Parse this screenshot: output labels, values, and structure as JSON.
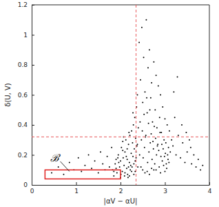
{
  "chart_data": {
    "type": "scatter",
    "x_label": "|αV − αU|",
    "y_label": "δ(U, V)",
    "color": "#000000",
    "xlim": [
      0,
      4
    ],
    "xticks": [
      0,
      1,
      2,
      3,
      4
    ],
    "ylim": [
      0,
      1.2
    ],
    "yticks": [
      0,
      0.2,
      0.4,
      0.6,
      0.8,
      1,
      1.2
    ],
    "grid": false,
    "vlines": [
      {
        "value": 2.35,
        "color": "#e8585a",
        "line_style": "dashed"
      }
    ],
    "hlines": [
      {
        "value": 0.32,
        "color": "#e8585a",
        "line_style": "dashed"
      }
    ],
    "box": {
      "x": [
        0.3,
        2.0
      ],
      "y": [
        0.04,
        0.1
      ],
      "color": "#e0201f"
    },
    "annotations": [
      {
        "text": "ℬ",
        "x": 0.52,
        "y": 0.175,
        "arrow_to": [
          0.85,
          0.09
        ]
      }
    ],
    "x": [
      0.45,
      0.6,
      0.72,
      0.85,
      0.95,
      1.05,
      1.12,
      1.2,
      1.28,
      1.35,
      1.42,
      1.5,
      1.55,
      1.6,
      1.65,
      1.7,
      1.75,
      1.8,
      1.85,
      1.9,
      1.82,
      1.88,
      1.92,
      1.95,
      1.98,
      2.0,
      2.02,
      2.04,
      2.06,
      2.08,
      2.1,
      2.12,
      2.14,
      2.15,
      2.16,
      2.18,
      2.2,
      2.21,
      2.22,
      2.24,
      2.25,
      2.26,
      2.27,
      2.28,
      2.29,
      2.3,
      2.31,
      2.32,
      2.33,
      2.34,
      1.85,
      1.9,
      1.96,
      2.01,
      2.05,
      2.09,
      2.13,
      2.17,
      2.19,
      2.23,
      2.35,
      2.36,
      2.37,
      2.38,
      2.39,
      2.4,
      2.0,
      2.1,
      2.2,
      2.3,
      2.05,
      2.15,
      2.25,
      2.35,
      1.94,
      2.07,
      2.18,
      2.28,
      2.33,
      2.38,
      2.42,
      2.45,
      2.48,
      2.5,
      2.52,
      2.55,
      2.58,
      2.6,
      2.62,
      2.65,
      2.68,
      2.7,
      2.72,
      2.75,
      2.78,
      2.8,
      2.82,
      2.85,
      2.88,
      2.9,
      2.92,
      2.95,
      2.98,
      3.0,
      3.02,
      3.05,
      3.08,
      3.1,
      3.12,
      3.15,
      2.43,
      2.47,
      2.51,
      2.54,
      2.57,
      2.61,
      2.64,
      2.67,
      2.71,
      2.74,
      2.77,
      2.81,
      2.84,
      2.87,
      2.91,
      2.94,
      2.97,
      3.01,
      3.04,
      3.07,
      2.44,
      2.49,
      2.53,
      2.56,
      2.59,
      2.63,
      2.66,
      2.69,
      2.73,
      2.76,
      2.79,
      2.83,
      2.86,
      2.89,
      2.93,
      2.96,
      2.99,
      3.03,
      3.06,
      3.09,
      2.46,
      2.5,
      2.6,
      2.7,
      2.8,
      2.9,
      3.0,
      2.55,
      2.65,
      2.75,
      3.18,
      3.22,
      3.25,
      3.3,
      3.35,
      3.4,
      3.45,
      3.5,
      3.55,
      3.6,
      3.65,
      3.7,
      3.75,
      3.8,
      3.85,
      3.2,
      3.28,
      3.38,
      3.48,
      3.58
    ],
    "values": [
      0.08,
      0.12,
      0.07,
      0.15,
      0.1,
      0.18,
      0.09,
      0.13,
      0.2,
      0.11,
      0.16,
      0.08,
      0.22,
      0.14,
      0.1,
      0.19,
      0.12,
      0.25,
      0.09,
      0.17,
      0.1,
      0.14,
      0.08,
      0.2,
      0.12,
      0.16,
      0.25,
      0.09,
      0.18,
      0.13,
      0.22,
      0.3,
      0.11,
      0.17,
      0.07,
      0.27,
      0.15,
      0.33,
      0.1,
      0.21,
      0.36,
      0.12,
      0.28,
      0.19,
      0.4,
      0.14,
      0.24,
      0.45,
      0.09,
      0.31,
      0.06,
      0.11,
      0.15,
      0.07,
      0.23,
      0.06,
      0.19,
      0.05,
      0.35,
      0.13,
      0.18,
      0.52,
      0.26,
      0.6,
      0.12,
      0.38,
      0.05,
      0.08,
      0.06,
      0.07,
      0.29,
      0.24,
      0.09,
      0.22,
      0.18,
      0.32,
      0.12,
      0.48,
      0.16,
      0.27,
      0.95,
      0.7,
      1.05,
      0.55,
      0.85,
      0.62,
      1.1,
      0.48,
      0.78,
      0.9,
      0.58,
      0.68,
      0.42,
      0.82,
      0.5,
      0.73,
      0.38,
      0.66,
      0.45,
      0.6,
      0.35,
      0.52,
      0.3,
      0.44,
      0.28,
      0.4,
      0.25,
      0.36,
      0.22,
      0.3,
      0.2,
      0.3,
      0.18,
      0.25,
      0.33,
      0.15,
      0.22,
      0.28,
      0.17,
      0.24,
      0.14,
      0.2,
      0.27,
      0.12,
      0.19,
      0.16,
      0.13,
      0.21,
      0.11,
      0.17,
      0.42,
      0.36,
      0.47,
      0.32,
      0.58,
      0.41,
      0.5,
      0.34,
      0.29,
      0.39,
      0.31,
      0.26,
      0.23,
      0.35,
      0.27,
      0.24,
      0.19,
      0.14,
      0.2,
      0.15,
      0.12,
      0.1,
      0.09,
      0.11,
      0.1,
      0.08,
      0.09,
      0.08,
      0.07,
      0.1,
      0.26,
      0.45,
      0.2,
      0.33,
      0.18,
      0.28,
      0.15,
      0.22,
      0.3,
      0.14,
      0.2,
      0.12,
      0.17,
      0.1,
      0.13,
      0.62,
      0.72,
      0.4,
      0.35,
      0.25
    ]
  }
}
